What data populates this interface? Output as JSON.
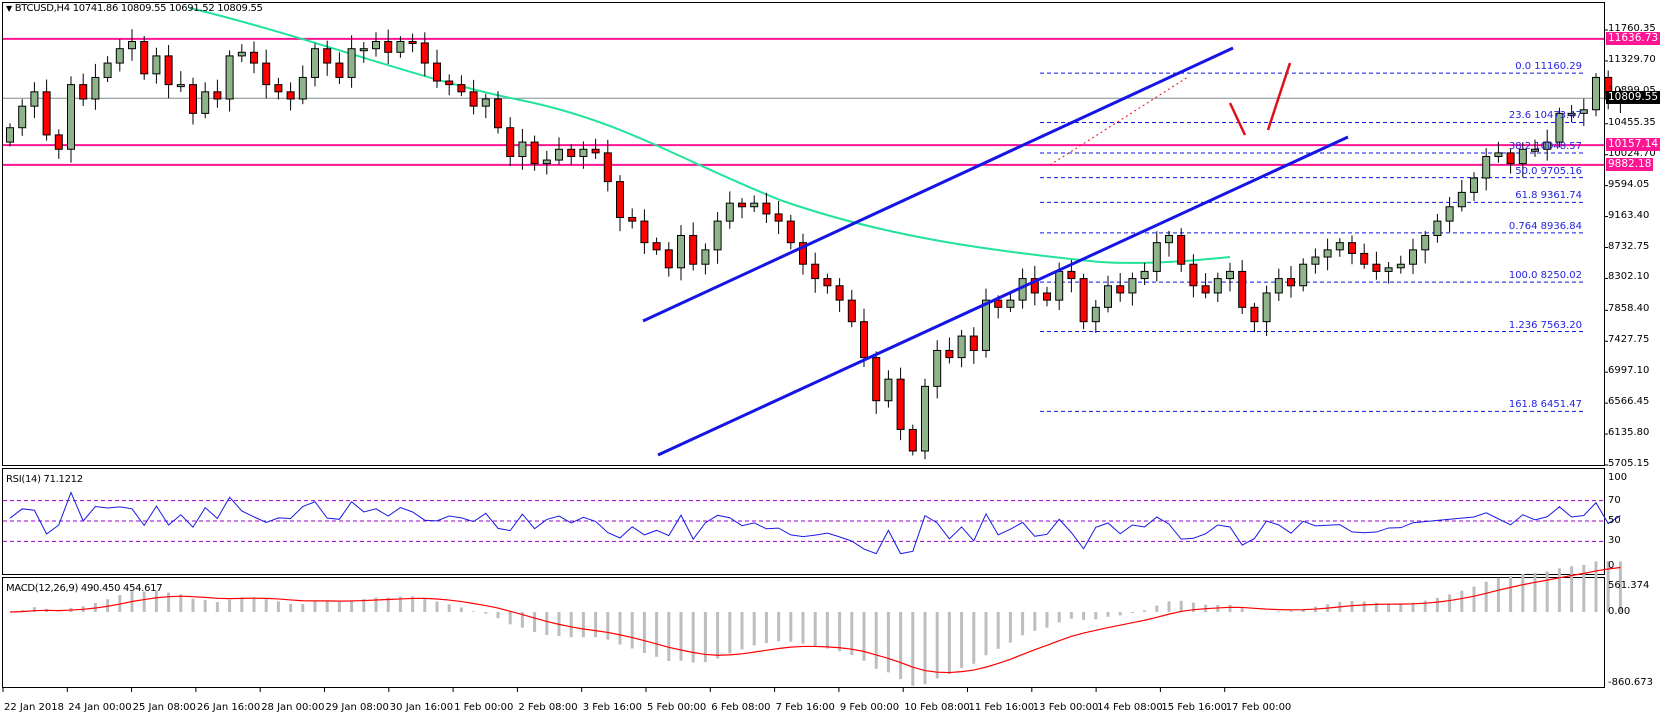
{
  "header": {
    "symbol_title": "BTCUSD,H4  10741.86 10809.55 10691.52 10809.55",
    "collapse_icon": "triangle-down-icon"
  },
  "colors": {
    "bull_candle": "#8fb38b",
    "bear_candle": "#ff0000",
    "ma_line": "#22e39a",
    "channel_line": "#1515e6",
    "support_resistance": "#ff1493",
    "fib_lines": "#1515e6",
    "rsi_line": "#1a1ae6",
    "rsi_levels": "#9900cc",
    "macd_hist": "#bdbdbd",
    "macd_signal": "#ff0000",
    "current_price_line": "#7f8c92"
  },
  "price_axis": {
    "ticks": [
      "11760.35",
      "11329.70",
      "10899.05",
      "10455.35",
      "10024.70",
      "9594.05",
      "9163.40",
      "8732.75",
      "8302.10",
      "7858.40",
      "7427.75",
      "6997.10",
      "6566.45",
      "6135.80",
      "5705.15"
    ],
    "tags": [
      {
        "value": "11636.73",
        "color": "#ff1493"
      },
      {
        "value": "10809.55",
        "color": "#000000"
      },
      {
        "value": "10157.14",
        "color": "#ff1493"
      },
      {
        "value": "9882.18",
        "color": "#ff1493"
      }
    ]
  },
  "fibonacci": [
    {
      "label": "0.0  11160.29"
    },
    {
      "label": "23.6  10473.47"
    },
    {
      "label": "38.2  10048.57"
    },
    {
      "label": "50.0 9705.16"
    },
    {
      "label": "61.8  9361.74"
    },
    {
      "label": "0.764  8936.84"
    },
    {
      "label": "100.0  8250.02"
    },
    {
      "label": "1.236 7563.20"
    },
    {
      "label": "161.8  6451.47"
    }
  ],
  "rsi": {
    "title": "RSI(14) 71.1212",
    "ticks": [
      "100",
      "70",
      "50",
      "30",
      "0"
    ]
  },
  "macd": {
    "title": "MACD(12,26,9) 490.450 454.617",
    "ticks": [
      "561.374",
      "0.00",
      "-860.673"
    ]
  },
  "time_axis": [
    "22 Jan 2018",
    "24 Jan 00:00",
    "25 Jan 08:00",
    "26 Jan 16:00",
    "28 Jan 00:00",
    "29 Jan 08:00",
    "30 Jan 16:00",
    "1 Feb 00:00",
    "2 Feb 08:00",
    "3 Feb 16:00",
    "5 Feb 00:00",
    "6 Feb 08:00",
    "7 Feb 16:00",
    "9 Feb 00:00",
    "10 Feb 08:00",
    "11 Feb 16:00",
    "13 Feb 00:00",
    "14 Feb 08:00",
    "15 Feb 16:00",
    "17 Feb 00:00"
  ],
  "chart_data": {
    "type": "candlestick",
    "title": "BTCUSD,H4",
    "ohlc_last": {
      "open": 10741.86,
      "high": 10809.55,
      "low": 10691.52,
      "close": 10809.55
    },
    "ylim": [
      5705.15,
      11900
    ],
    "horizontal_levels": [
      11636.73,
      10157.14,
      9882.18
    ],
    "current_price": 10809.55,
    "fibonacci_levels": {
      "0.0": 11160.29,
      "23.6": 10473.47,
      "38.2": 10048.57,
      "50.0": 9705.16,
      "61.8": 9361.74,
      "76.4": 8936.84,
      "100.0": 8250.02,
      "123.6": 7563.2,
      "161.8": 6451.47
    },
    "indicators": {
      "rsi_14": 71.1212,
      "macd": {
        "params": "12,26,9",
        "main": 490.45,
        "signal": 454.617,
        "range": [
          -860.673,
          561.374
        ]
      }
    },
    "ascending_channel": {
      "upper": "from ~7760 (5 Feb) to ~11420 (17 Feb)",
      "lower": "from ~5870 (6 Feb) to ~10330 (18 Feb)"
    },
    "annotations": [
      "Red arrow-like projection: dip toward ~10473 then rise toward ~11300"
    ],
    "x_labels": [
      "22 Jan 2018",
      "24 Jan 00:00",
      "25 Jan 08:00",
      "26 Jan 16:00",
      "28 Jan 00:00",
      "29 Jan 08:00",
      "30 Jan 16:00",
      "1 Feb 00:00",
      "2 Feb 08:00",
      "3 Feb 16:00",
      "5 Feb 00:00",
      "6 Feb 08:00",
      "7 Feb 16:00",
      "9 Feb 00:00",
      "10 Feb 08:00",
      "11 Feb 16:00",
      "13 Feb 00:00",
      "14 Feb 08:00",
      "15 Feb 16:00",
      "17 Feb 00:00"
    ],
    "closes_approx": [
      10400,
      10700,
      10900,
      10300,
      10100,
      11000,
      10800,
      11100,
      11300,
      11500,
      11600,
      11150,
      11400,
      11000,
      11000,
      10600,
      10900,
      10800,
      11400,
      11450,
      11300,
      11000,
      10900,
      10800,
      11100,
      11500,
      11300,
      11100,
      11500,
      11500,
      11600,
      11450,
      11600,
      11580,
      11300,
      11050,
      11000,
      10900,
      10700,
      10800,
      10400,
      10000,
      10200,
      9900,
      9950,
      10100,
      10000,
      10100,
      10050,
      9650,
      9150,
      9100,
      8800,
      8700,
      8450,
      8900,
      8500,
      8700,
      9100,
      9350,
      9300,
      9350,
      9200,
      9100,
      8800,
      8500,
      8300,
      8200,
      8000,
      7700,
      7200,
      6600,
      6900,
      6200,
      5900,
      6800,
      7300,
      7200,
      7500,
      7300,
      8000,
      7900,
      8000,
      8300,
      8100,
      8000,
      8400,
      8300,
      7700,
      7900,
      8200,
      8100,
      8300,
      8400,
      8800,
      8900,
      8500,
      8200,
      8100,
      8300,
      8400,
      7900,
      7700,
      8100,
      8300,
      8200,
      8500,
      8600,
      8700,
      8800,
      8650,
      8500,
      8400,
      8450,
      8500,
      8700,
      8900,
      9100,
      9300,
      9500,
      9700,
      10000,
      10050,
      9900,
      10100,
      10100,
      10200,
      10600,
      10600,
      10650,
      11100,
      10800,
      10809.55
    ]
  }
}
